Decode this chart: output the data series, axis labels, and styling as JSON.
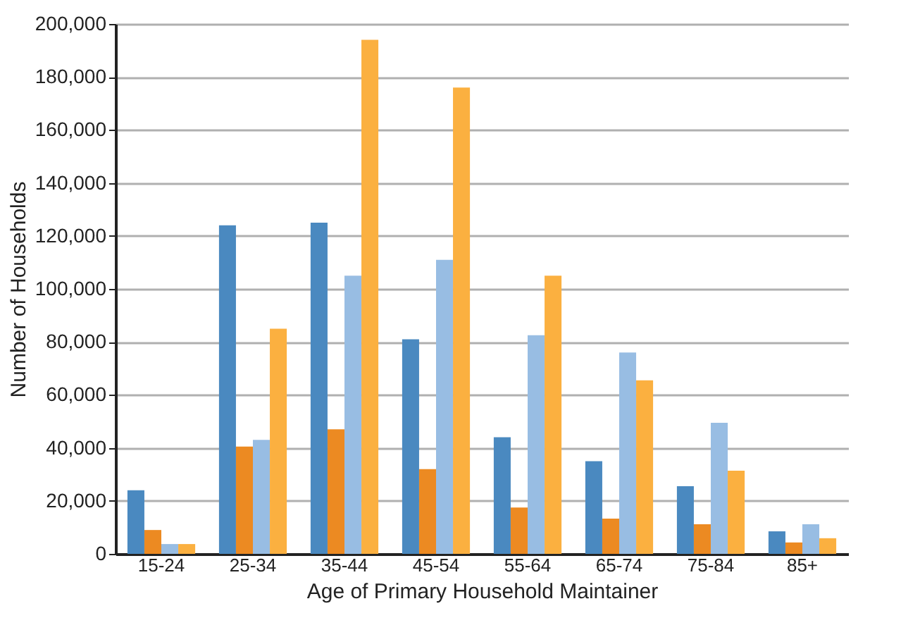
{
  "chart_data": {
    "type": "bar",
    "xlabel": "Age of Primary Household Maintainer",
    "ylabel": "Number of Households",
    "categories": [
      "15-24",
      "25-34",
      "35-44",
      "45-54",
      "55-64",
      "65-74",
      "75-84",
      "85+"
    ],
    "series": [
      {
        "color": "#4a89c0",
        "values": [
          24000,
          124000,
          125000,
          81000,
          44000,
          35000,
          25500,
          8500
        ]
      },
      {
        "color": "#ec8a22",
        "values": [
          9000,
          40500,
          47000,
          32000,
          17500,
          13300,
          11200,
          4300
        ]
      },
      {
        "color": "#98bde3",
        "values": [
          3700,
          43000,
          105000,
          111000,
          82500,
          76000,
          49500,
          11200
        ]
      },
      {
        "color": "#fbb040",
        "values": [
          3700,
          85000,
          194000,
          176000,
          105000,
          65500,
          31400,
          5900
        ]
      }
    ],
    "ylim": [
      0,
      200000
    ],
    "yticks": [
      0,
      {
        "value": 20000,
        "label": "20,000"
      },
      {
        "value": 40000,
        "label": "40,000"
      },
      {
        "value": 60000,
        "label": "60,000"
      },
      {
        "value": 80000,
        "label": "80,000"
      },
      {
        "value": 100000,
        "label": "100,000"
      },
      {
        "value": 120000,
        "label": "120,000"
      },
      {
        "value": 140000,
        "label": "140,000"
      },
      {
        "value": 160000,
        "label": "160,000"
      },
      {
        "value": 180000,
        "label": "180,000"
      },
      {
        "value": 200000,
        "label": "200,000"
      }
    ],
    "grid": "y",
    "legend": false
  }
}
